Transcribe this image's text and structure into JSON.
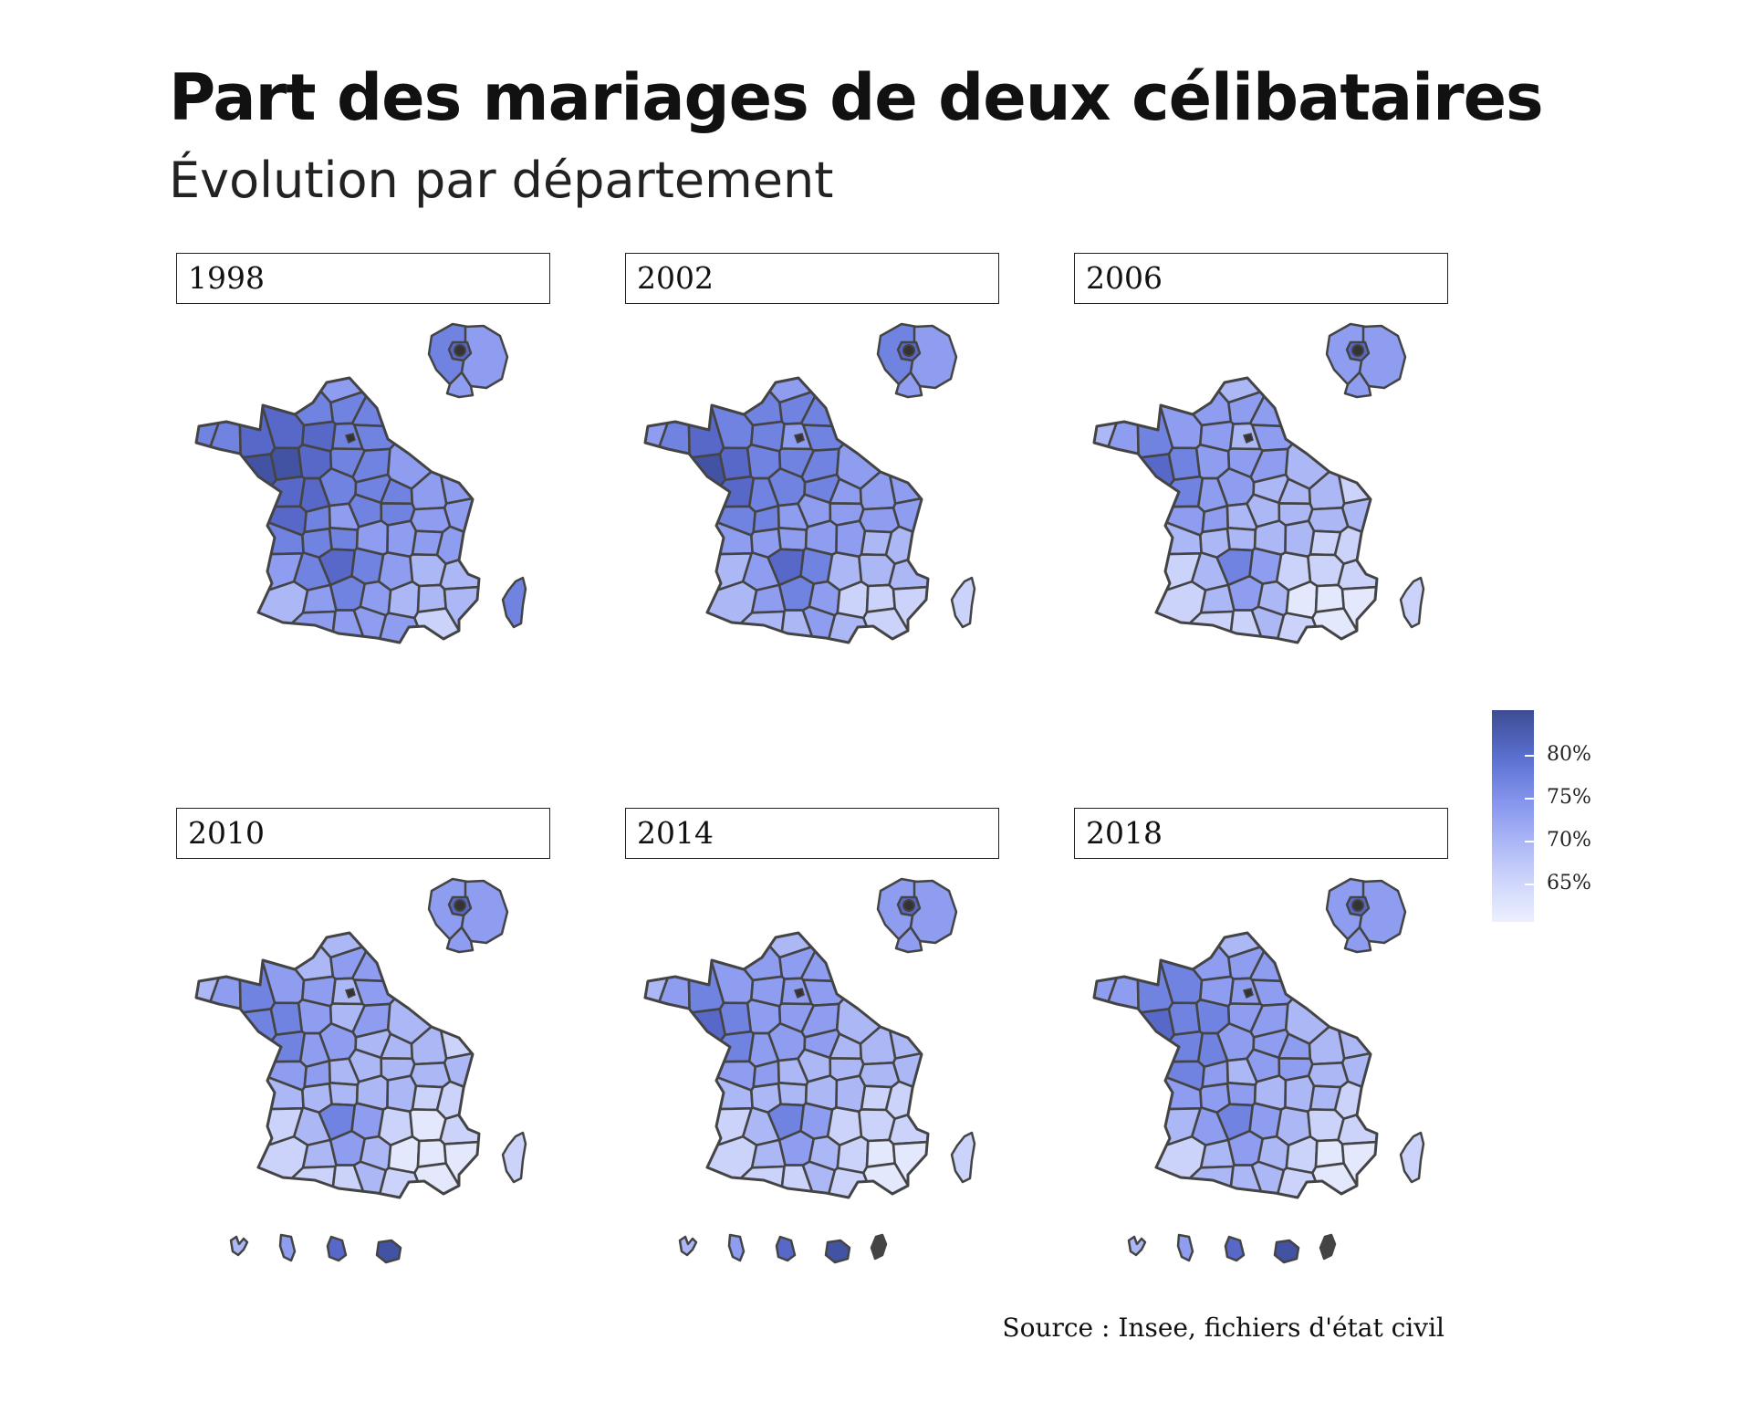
{
  "header": {
    "title": "Part des mariages de deux célibataires",
    "subtitle": "Évolution par département"
  },
  "panels": [
    {
      "year": "1998",
      "dom_shown": false
    },
    {
      "year": "2002",
      "dom_shown": false
    },
    {
      "year": "2006",
      "dom_shown": false
    },
    {
      "year": "2010",
      "dom_shown": true,
      "dom_count": 4
    },
    {
      "year": "2014",
      "dom_shown": true,
      "dom_count": 5
    },
    {
      "year": "2018",
      "dom_shown": true,
      "dom_count": 5
    }
  ],
  "legend": {
    "labels": [
      "80%",
      "75%",
      "70%",
      "65%"
    ],
    "colors": [
      "#3d4c93",
      "#5a6fcf",
      "#8796ee",
      "#aab6f6",
      "#cdd4fb",
      "#eceffe"
    ]
  },
  "source": "Source : Insee, fichiers d'état civil",
  "colors": {
    "border": "#444444",
    "background": "#ffffff"
  }
}
